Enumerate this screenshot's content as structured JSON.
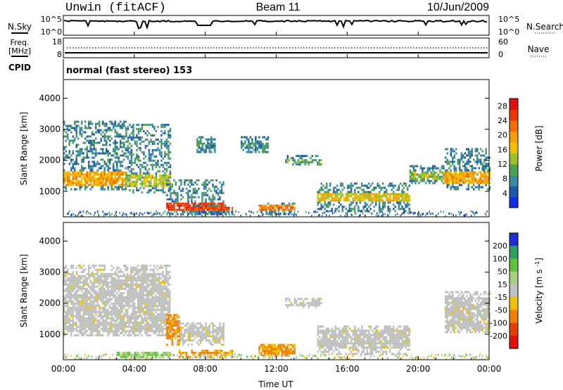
{
  "header": {
    "station": "Unwin (fitACF)",
    "beam": "Beam 11",
    "date": "10/Jun/2009"
  },
  "side_labels": {
    "nsky": "N.Sky",
    "nsearch": "N.Search",
    "freq_line1": "Freq.",
    "freq_line2": "[MHz]",
    "nave": "Nave",
    "cpid": "CPID"
  },
  "noise_panel": {
    "left_ticks": [
      "10^5",
      "10^0"
    ],
    "right_ticks": [
      "10^5",
      "10^0"
    ]
  },
  "freq_panel": {
    "left_ticks": [
      "18",
      "8"
    ],
    "right_ticks": [
      "60",
      "0"
    ]
  },
  "cpid_text": "normal (fast stereo) 153",
  "chart_data": [
    {
      "type": "heatmap",
      "name": "power",
      "ylabel": "Slant Range [km]",
      "ylim": [
        180,
        4600
      ],
      "yticks": [
        1000,
        2000,
        3000,
        4000
      ],
      "xlim": [
        0,
        24
      ],
      "colorbar_label": "Power [dB]",
      "colorbar_ticks": [
        4,
        8,
        12,
        16,
        20,
        24,
        28
      ],
      "colorbar_range": [
        0,
        30
      ],
      "colors": [
        "#1030e0",
        "#1f5aa8",
        "#3a8aa0",
        "#4fa050",
        "#9cc02a",
        "#f0c000",
        "#f0a000",
        "#ee7000",
        "#e83800",
        "#e01010"
      ],
      "regions": [
        {
          "t": [
            0.0,
            3.5
          ],
          "r": [
            1100,
            3300
          ],
          "core": [
            1200,
            1700
          ],
          "v": 19
        },
        {
          "t": [
            3.5,
            6.0
          ],
          "r": [
            1000,
            3200
          ],
          "core": [
            1200,
            1600
          ],
          "v": 14
        },
        {
          "t": [
            5.8,
            9.0
          ],
          "r": [
            300,
            1400
          ],
          "core": [
            400,
            700
          ],
          "v": 26
        },
        {
          "t": [
            7.0,
            9.5
          ],
          "r": [
            300,
            600
          ],
          "core": [
            400,
            550
          ],
          "v": 24
        },
        {
          "t": [
            7.5,
            8.5
          ],
          "r": [
            2300,
            2800
          ],
          "core": [
            2400,
            2600
          ],
          "v": 8
        },
        {
          "t": [
            10.0,
            11.5
          ],
          "r": [
            2300,
            2800
          ],
          "core": [
            2400,
            2600
          ],
          "v": 8
        },
        {
          "t": [
            11.0,
            13.0
          ],
          "r": [
            300,
            700
          ],
          "core": [
            420,
            600
          ],
          "v": 22
        },
        {
          "t": [
            12.5,
            14.5
          ],
          "r": [
            1900,
            2200
          ],
          "core": [
            1950,
            2100
          ],
          "v": 11
        },
        {
          "t": [
            14.3,
            19.5
          ],
          "r": [
            400,
            1300
          ],
          "core": [
            700,
            1000
          ],
          "v": 17
        },
        {
          "t": [
            19.5,
            21.5
          ],
          "r": [
            1300,
            1900
          ],
          "core": [
            1400,
            1700
          ],
          "v": 12
        },
        {
          "t": [
            21.5,
            24.0
          ],
          "r": [
            1100,
            2400
          ],
          "core": [
            1300,
            1700
          ],
          "v": 19
        }
      ]
    },
    {
      "type": "heatmap",
      "name": "velocity",
      "ylabel": "Slant Range [km]",
      "ylim": [
        180,
        4600
      ],
      "yticks": [
        1000,
        2000,
        3000,
        4000
      ],
      "xlim": [
        0,
        24
      ],
      "xticks": [
        "00:00",
        "04:00",
        "08:00",
        "12:00",
        "16:00",
        "20:00",
        "00:00"
      ],
      "xlabel": "Time UT",
      "colorbar_label": "Velocity [m s^-1]",
      "colorbar_ticks": [
        "200",
        "100",
        "50",
        "15",
        "-15",
        "-50",
        "-100",
        "-200"
      ],
      "colors": [
        "#2030d0",
        "#30a060",
        "#60c040",
        "#a8d080",
        "#c0c0c0",
        "#f0c000",
        "#f08000",
        "#e04000",
        "#e01010"
      ],
      "regions": [
        {
          "t": [
            0.0,
            6.0
          ],
          "r": [
            1000,
            3300
          ],
          "core": [
            1100,
            3000
          ],
          "v": 0
        },
        {
          "t": [
            5.8,
            6.5
          ],
          "r": [
            700,
            1700
          ],
          "core": [
            900,
            1600
          ],
          "v": -40
        },
        {
          "t": [
            6.5,
            9.0
          ],
          "r": [
            700,
            1400
          ],
          "core": [
            800,
            1300
          ],
          "v": 0
        },
        {
          "t": [
            6.5,
            9.5
          ],
          "r": [
            300,
            550
          ],
          "core": [
            380,
            500
          ],
          "v": -40
        },
        {
          "t": [
            3.0,
            6.0
          ],
          "r": [
            300,
            500
          ],
          "core": [
            350,
            450
          ],
          "v": 50
        },
        {
          "t": [
            11.0,
            13.0
          ],
          "r": [
            350,
            700
          ],
          "core": [
            400,
            650
          ],
          "v": -40
        },
        {
          "t": [
            12.5,
            14.5
          ],
          "r": [
            1900,
            2200
          ],
          "core": [
            1950,
            2100
          ],
          "v": 0
        },
        {
          "t": [
            14.3,
            19.5
          ],
          "r": [
            400,
            1300
          ],
          "core": [
            600,
            1200
          ],
          "v": 0
        },
        {
          "t": [
            21.5,
            24.0
          ],
          "r": [
            1100,
            2400
          ],
          "core": [
            1200,
            2200
          ],
          "v": 0
        }
      ]
    }
  ]
}
